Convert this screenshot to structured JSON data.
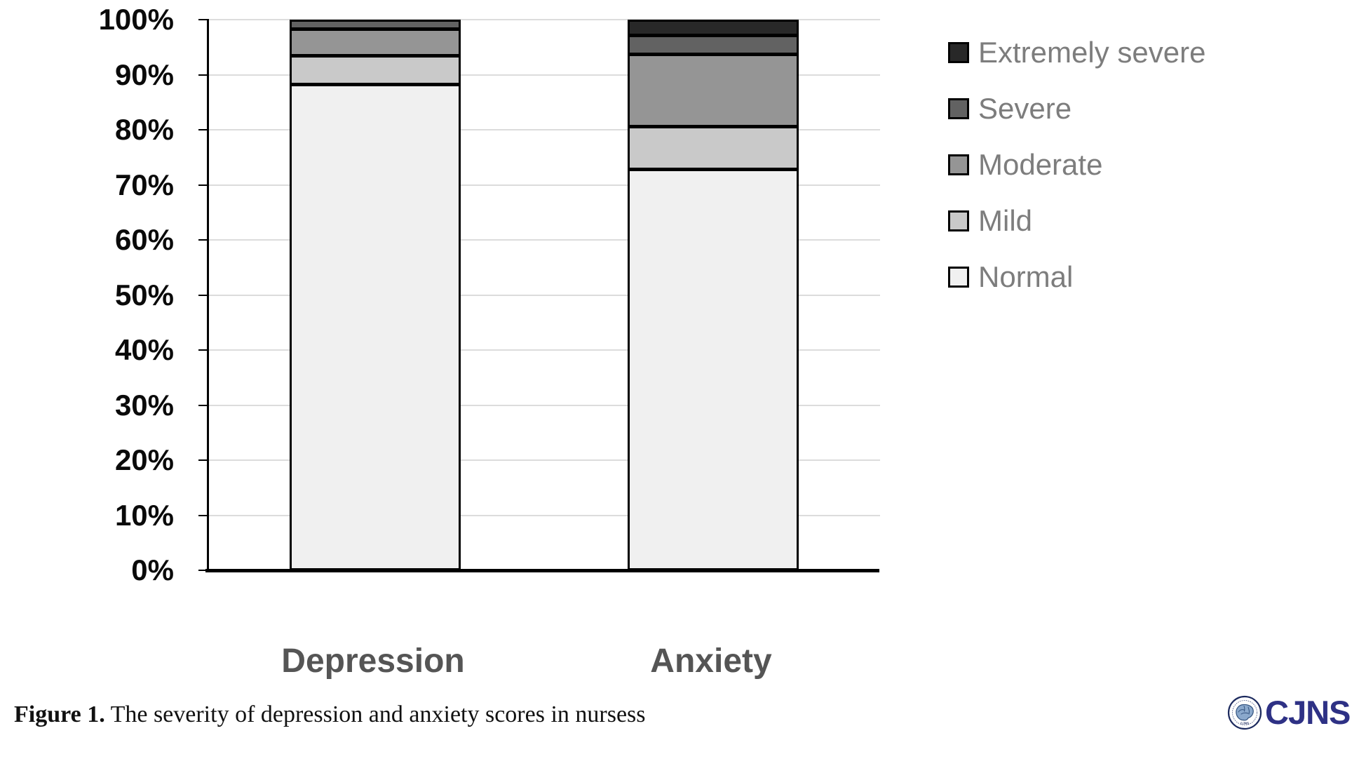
{
  "chart_data": {
    "type": "bar",
    "stacked": true,
    "orientation": "vertical",
    "categories": [
      "Depression",
      "Anxiety"
    ],
    "series": [
      {
        "name": "Normal",
        "color": "#f0f0f0",
        "values": [
          89.9,
          74.6
        ]
      },
      {
        "name": "Mild",
        "color": "#c9c9c9",
        "values": [
          4.7,
          7.3
        ]
      },
      {
        "name": "Moderate",
        "color": "#959595",
        "values": [
          4.3,
          12.9
        ]
      },
      {
        "name": "Severe",
        "color": "#626262",
        "values": [
          1.1,
          2.9
        ]
      },
      {
        "name": "Extremely severe",
        "color": "#282828",
        "values": [
          0,
          2.3
        ]
      }
    ],
    "title": "",
    "xlabel": "",
    "ylabel": "",
    "ylim": [
      0,
      100
    ],
    "ytick_step": 10,
    "ytick_labels": [
      "0%",
      "10%",
      "20%",
      "30%",
      "40%",
      "50%",
      "60%",
      "70%",
      "80%",
      "90%",
      "100%"
    ],
    "grid": true,
    "legend_position": "right",
    "legend_order_top_to_bottom": [
      "Extremely severe",
      "Severe",
      "Moderate",
      "Mild",
      "Normal"
    ],
    "bar_border_color": "#000000",
    "gridline_color": "#dcdcdc"
  },
  "caption": {
    "fig_label": "Figure 1.",
    "text": " The severity of depression and anxiety scores in nursess"
  },
  "logo": {
    "text": "CJNS",
    "color": "#2e3185",
    "emblem": "brain-circle-emblem"
  }
}
